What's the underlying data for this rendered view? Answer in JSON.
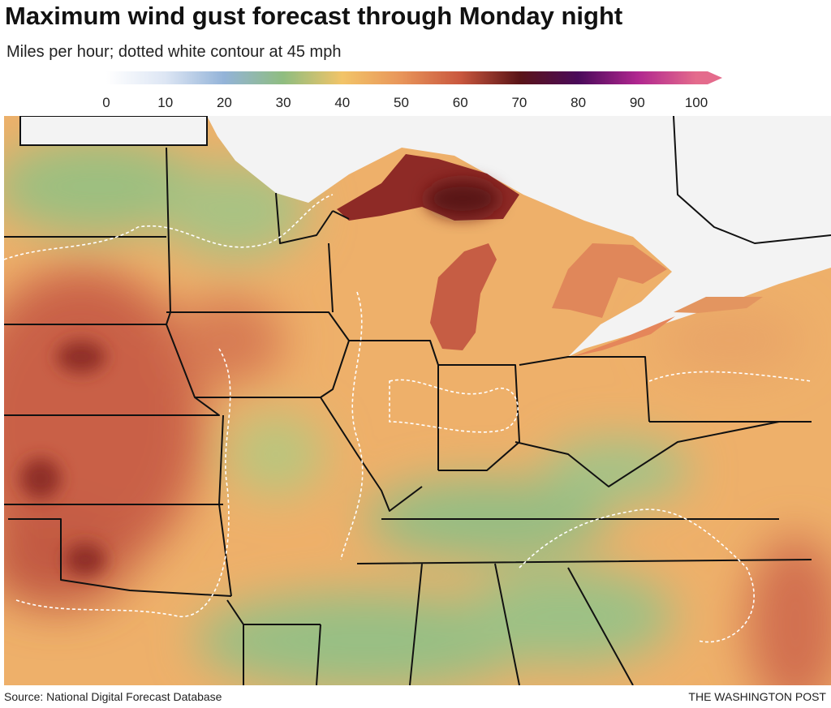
{
  "header": {
    "title": "Maximum wind gust forecast through Monday night",
    "subtitle": "Miles per hour; dotted white contour at 45 mph"
  },
  "legend": {
    "ticks": [
      0,
      10,
      20,
      30,
      40,
      50,
      60,
      70,
      80,
      90,
      100
    ],
    "colors": [
      "#ffffff",
      "#dde6f4",
      "#93b3d8",
      "#8fbd80",
      "#f2c468",
      "#e8955a",
      "#c9573e",
      "#5a1417",
      "#4a0a5a",
      "#b0268f",
      "#e46b8c"
    ]
  },
  "footer": {
    "source": "Source: National Digital Forecast Database",
    "credit": "THE WASHINGTON POST"
  }
}
